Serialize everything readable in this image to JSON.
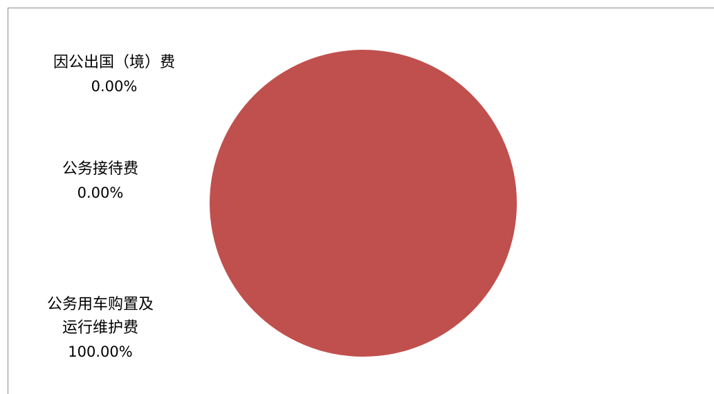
{
  "chart_data": {
    "type": "pie",
    "slices": [
      {
        "label": "因公出国（境）费",
        "value_text": "0.00%",
        "value": 0.0
      },
      {
        "label": "公务接待费",
        "value_text": "0.00%",
        "value": 0.0
      },
      {
        "label_lines": [
          "公务用车购置及",
          "运行维护费"
        ],
        "value_text": "100.00%",
        "value": 100.0
      }
    ],
    "colors": [
      "#4f81bd",
      "#f79646",
      "#c0504d"
    ]
  }
}
